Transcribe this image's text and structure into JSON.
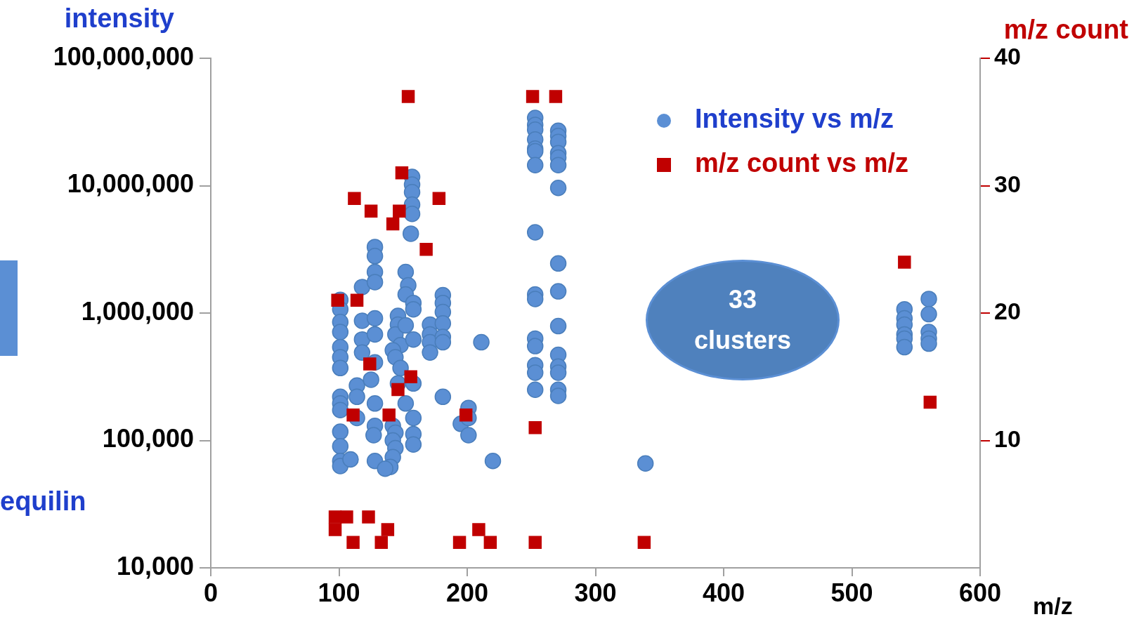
{
  "chart_data": {
    "type": "scatter",
    "xlabel": "m/z",
    "ylabel": "intensity",
    "y2label": "m/z count",
    "xlim": [
      0,
      600
    ],
    "xticks": [
      0,
      100,
      200,
      300,
      400,
      500,
      600
    ],
    "ylim": [
      10000,
      100000000
    ],
    "yticks": [
      {
        "value": 10000,
        "label": "10,000"
      },
      {
        "value": 100000,
        "label": "100,000"
      },
      {
        "value": 1000000,
        "label": "1,000,000"
      },
      {
        "value": 10000000,
        "label": "10,000,000"
      },
      {
        "value": 100000000,
        "label": "100,000,000"
      }
    ],
    "log": "y",
    "y2lim": [
      0,
      40
    ],
    "y2ticks": [
      10,
      20,
      30,
      40
    ],
    "grid": false,
    "legend": "top right",
    "annotations": [
      "33 clusters",
      "equilin"
    ],
    "series": [
      {
        "name": "Intensity vs m/z",
        "color": "#5b8fd4",
        "marker": "circle",
        "x": [
          101,
          101,
          101,
          101,
          101,
          101,
          101,
          101,
          101,
          101,
          101,
          101,
          101,
          101,
          109,
          114,
          114,
          114,
          118,
          118,
          118,
          118,
          125,
          128,
          128,
          128,
          128,
          128,
          128,
          128,
          128,
          128,
          127,
          128,
          146,
          146,
          144,
          148,
          142,
          144,
          148,
          146,
          142,
          144,
          142,
          144,
          142,
          140,
          136,
          152,
          154,
          152,
          158,
          158,
          152,
          158,
          158,
          152,
          158,
          158,
          158,
          157,
          157,
          157,
          157,
          157,
          156,
          171,
          171,
          171,
          171,
          181,
          181,
          181,
          181,
          181,
          181,
          181,
          195,
          201,
          201,
          201,
          211,
          220,
          253,
          253,
          253,
          253,
          253,
          253,
          253,
          253,
          253,
          253,
          253,
          253,
          253,
          253,
          253,
          271,
          271,
          271,
          271,
          271,
          271,
          271,
          271,
          271,
          271,
          271,
          271,
          271,
          271,
          271,
          339,
          541,
          541,
          541,
          541,
          541,
          541,
          560,
          560,
          560,
          560,
          560
        ],
        "values": [
          1270000,
          1070000,
          850000,
          710000,
          540000,
          450000,
          370000,
          220000,
          195000,
          173000,
          117000,
          90000,
          69000,
          63000,
          71000,
          270000,
          220000,
          150000,
          1600000,
          870000,
          620000,
          490000,
          300000,
          3300000,
          2800000,
          2100000,
          1750000,
          910000,
          680000,
          410000,
          195000,
          130000,
          110000,
          69000,
          950000,
          810000,
          680000,
          560000,
          510000,
          450000,
          370000,
          280000,
          130000,
          115000,
          100000,
          87000,
          74000,
          62000,
          60000,
          2100000,
          1650000,
          1400000,
          1200000,
          1070000,
          800000,
          620000,
          280000,
          195000,
          150000,
          112000,
          93000,
          11700000,
          10200000,
          8900000,
          7100000,
          6000000,
          4200000,
          810000,
          680000,
          590000,
          490000,
          1380000,
          1200000,
          1020000,
          830000,
          650000,
          590000,
          220000,
          135000,
          180000,
          150000,
          110000,
          590000,
          69000,
          34000000,
          30000000,
          27500000,
          23000000,
          19500000,
          18600000,
          14500000,
          4300000,
          1400000,
          1290000,
          630000,
          550000,
          390000,
          340000,
          250000,
          27000000,
          24500000,
          22000000,
          18000000,
          16600000,
          14500000,
          9600000,
          2450000,
          1480000,
          790000,
          470000,
          380000,
          340000,
          250000,
          224000,
          66000,
          1070000,
          910000,
          810000,
          680000,
          630000,
          540000,
          1290000,
          980000,
          710000,
          630000,
          575000
        ]
      },
      {
        "name": "m/z count vs m/z",
        "color": "#c00000",
        "marker": "square",
        "axis": "y2",
        "x": [
          154,
          251,
          269,
          149,
          112,
          178,
          125,
          147,
          142,
          168,
          541,
          99,
          114,
          124,
          156,
          146,
          111,
          139,
          199,
          561,
          253,
          97,
          106,
          97,
          123,
          138,
          111,
          133,
          194,
          209,
          218,
          253,
          338
        ],
        "values": [
          37,
          37,
          37,
          31,
          29,
          29,
          28,
          28,
          27,
          25,
          24,
          21,
          21,
          16,
          15,
          14,
          12,
          12,
          12,
          13,
          11,
          4,
          4,
          3,
          4,
          3,
          2,
          2,
          2,
          3,
          2,
          2,
          2
        ]
      }
    ]
  }
}
